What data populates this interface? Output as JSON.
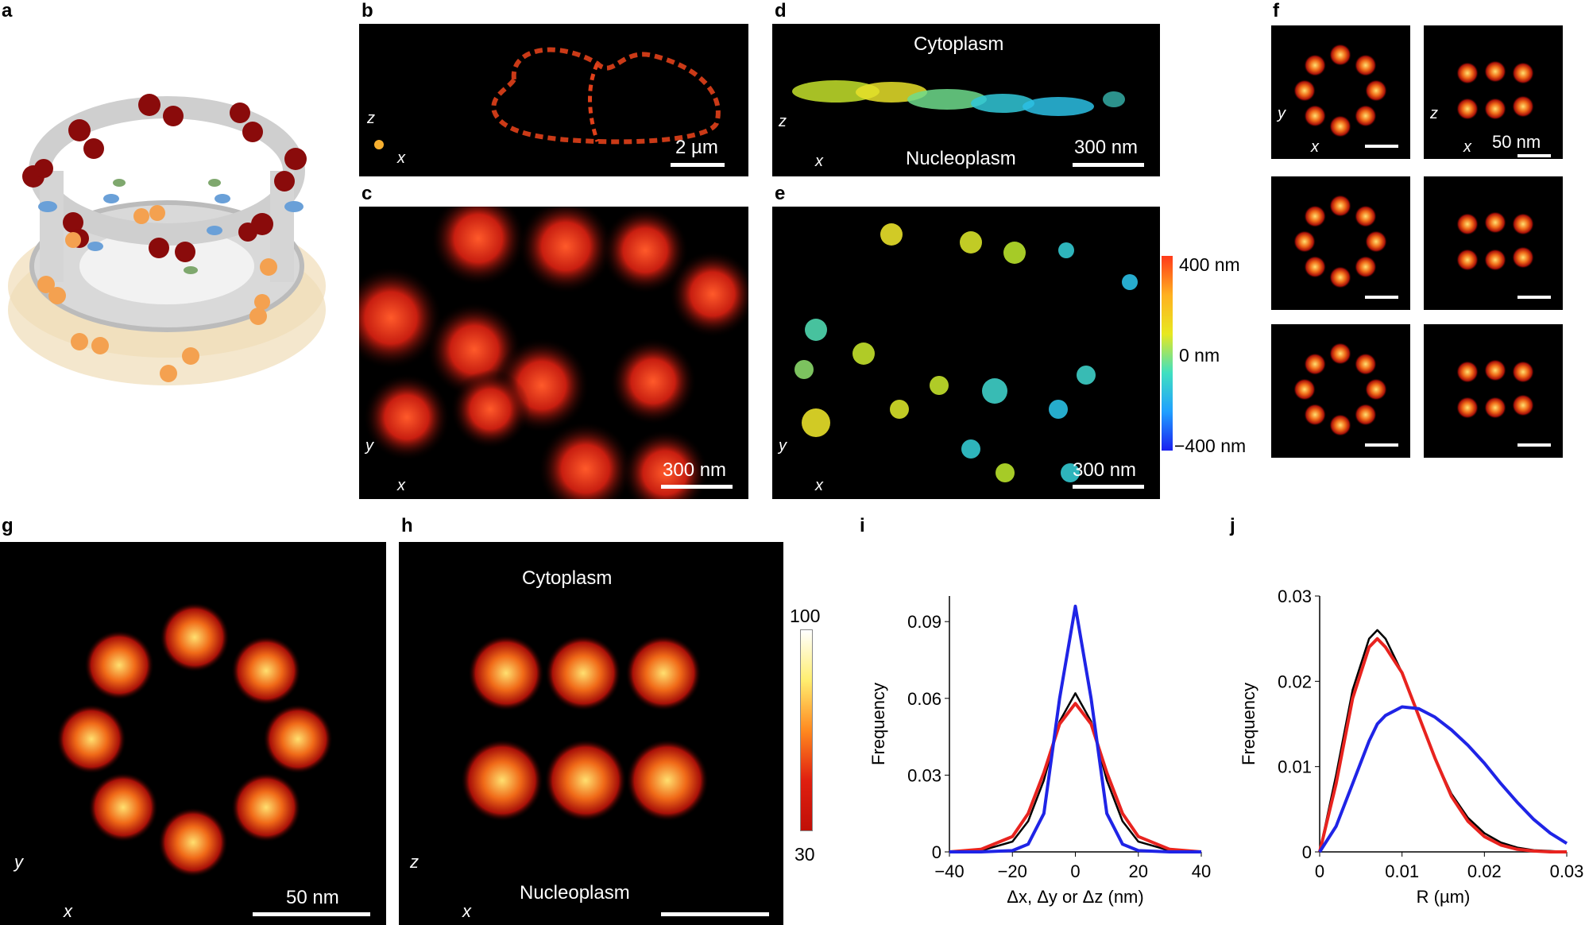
{
  "labels": {
    "a": "a",
    "b": "b",
    "c": "c",
    "d": "d",
    "e": "e",
    "f": "f",
    "g": "g",
    "h": "h",
    "i": "i",
    "j": "j"
  },
  "panel_b": {
    "scale": "2 µm",
    "z": "z",
    "x": "x"
  },
  "panel_c": {
    "scale": "300 nm",
    "y": "y",
    "x": "x"
  },
  "panel_d": {
    "top": "Cytoplasm",
    "bottom": "Nucleoplasm",
    "scale": "300 nm",
    "z": "z",
    "x": "x"
  },
  "panel_e": {
    "scale": "300 nm",
    "y": "y",
    "x": "x",
    "colorbar": [
      "400 nm",
      "0 nm",
      "−400 nm"
    ]
  },
  "panel_f": {
    "scale": "50 nm",
    "y": "y",
    "z": "z",
    "x": "x"
  },
  "panel_g": {
    "scale": "50 nm",
    "y": "y",
    "x": "x"
  },
  "panel_h": {
    "top": "Cytoplasm",
    "bottom": "Nucleoplasm",
    "z": "z",
    "x": "x",
    "colorbar": [
      "100",
      "30"
    ]
  },
  "colors": {
    "red": "#e8231f",
    "blue": "#1f24e6",
    "black": "#000000"
  },
  "chart_data": [
    {
      "type": "line",
      "ylabel": "Frequency",
      "xlabel": "Δx, Δy or Δz (nm)",
      "xlim": [
        -40,
        40
      ],
      "ylim": [
        0,
        0.1
      ],
      "xticks": [
        "−40",
        "−20",
        "0",
        "20",
        "40"
      ],
      "yticks": [
        "0",
        "0.03",
        "0.06",
        "0.09"
      ],
      "x": [
        -40,
        -30,
        -20,
        -15,
        -10,
        -5,
        0,
        5,
        10,
        15,
        20,
        30,
        40
      ],
      "series": [
        {
          "color": "black",
          "values": [
            0,
            0.0005,
            0.004,
            0.012,
            0.028,
            0.051,
            0.062,
            0.051,
            0.028,
            0.012,
            0.004,
            0.0005,
            0
          ]
        },
        {
          "color": "red",
          "values": [
            0,
            0.001,
            0.006,
            0.015,
            0.031,
            0.05,
            0.058,
            0.05,
            0.031,
            0.015,
            0.006,
            0.001,
            0
          ]
        },
        {
          "color": "blue",
          "values": [
            0,
            0,
            0.0005,
            0.003,
            0.015,
            0.06,
            0.096,
            0.06,
            0.015,
            0.003,
            0.0005,
            0,
            0
          ]
        }
      ]
    },
    {
      "type": "line",
      "ylabel": "Frequency",
      "xlabel": "R (µm)",
      "xlim": [
        0,
        0.03
      ],
      "ylim": [
        0,
        0.03
      ],
      "xticks": [
        "0",
        "0.01",
        "0.02",
        "0.03"
      ],
      "yticks": [
        "0",
        "0.01",
        "0.02",
        "0.03"
      ],
      "x": [
        0,
        0.002,
        0.004,
        0.006,
        0.007,
        0.008,
        0.01,
        0.012,
        0.014,
        0.016,
        0.018,
        0.02,
        0.022,
        0.024,
        0.026,
        0.028,
        0.03
      ],
      "series": [
        {
          "color": "black",
          "values": [
            0,
            0.009,
            0.019,
            0.025,
            0.026,
            0.025,
            0.021,
            0.016,
            0.011,
            0.0068,
            0.004,
            0.0022,
            0.0011,
            0.0005,
            0.0002,
            0.0001,
            0
          ]
        },
        {
          "color": "red",
          "values": [
            0,
            0.008,
            0.018,
            0.024,
            0.025,
            0.024,
            0.021,
            0.016,
            0.011,
            0.0065,
            0.0036,
            0.0018,
            0.0008,
            0.0003,
            0.0001,
            0,
            0
          ]
        },
        {
          "color": "blue",
          "values": [
            0,
            0.003,
            0.008,
            0.013,
            0.015,
            0.016,
            0.017,
            0.0168,
            0.0158,
            0.0143,
            0.0125,
            0.0104,
            0.008,
            0.0058,
            0.0038,
            0.0022,
            0.001
          ]
        }
      ]
    }
  ]
}
